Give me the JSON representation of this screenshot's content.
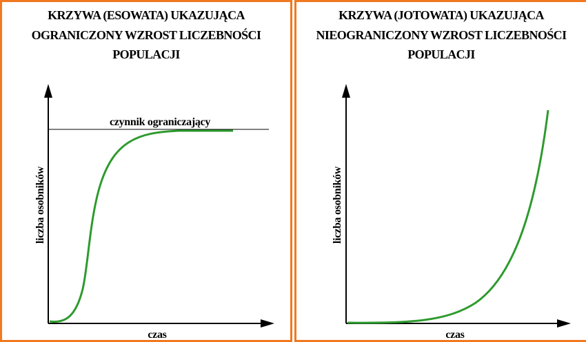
{
  "panels": [
    {
      "title": [
        "KRZYWA (ESOWATA) UKAZUJĄCA",
        "OGRANICZONY WZROST LICZEBNOŚCI",
        "POPULACJI"
      ],
      "y_label": "liczba osobników",
      "x_label": "czas",
      "annotation": "czynnik ograniczający"
    },
    {
      "title": [
        "KRZYWA (JOTOWATA) UKAZUJĄCA",
        "NIEOGRANICZONY WZROST LICZEBNOŚCI",
        "POPULACJI"
      ],
      "y_label": "liczba osobników",
      "x_label": "czas"
    }
  ]
}
